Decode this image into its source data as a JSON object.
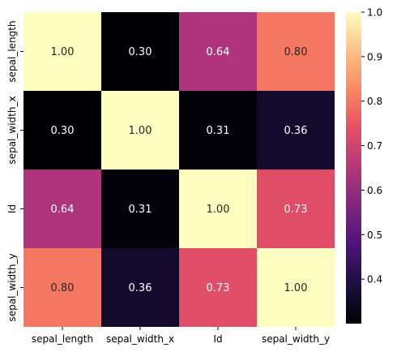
{
  "chart_data": {
    "type": "heatmap",
    "x_labels": [
      "sepal_length",
      "sepal_width_x",
      "Id",
      "sepal_width_y"
    ],
    "y_labels": [
      "sepal_length",
      "sepal_width_x",
      "Id",
      "sepal_width_y"
    ],
    "values": [
      [
        1.0,
        0.3,
        0.64,
        0.8
      ],
      [
        0.3,
        1.0,
        0.31,
        0.36
      ],
      [
        0.64,
        0.31,
        1.0,
        0.73
      ],
      [
        0.8,
        0.36,
        0.73,
        1.0
      ]
    ],
    "annotations": [
      [
        "1.00",
        "0.30",
        "0.64",
        "0.80"
      ],
      [
        "0.30",
        "1.00",
        "0.31",
        "0.36"
      ],
      [
        "0.64",
        "0.31",
        "1.00",
        "0.73"
      ],
      [
        "0.80",
        "0.36",
        "0.73",
        "1.00"
      ]
    ],
    "colormap": "magma",
    "colorbar": {
      "ticks": [
        "0.4",
        "0.5",
        "0.6",
        "0.7",
        "0.8",
        "0.9",
        "1.0"
      ],
      "range": [
        0.3,
        1.0
      ]
    },
    "title": "",
    "xlabel": "",
    "ylabel": ""
  }
}
